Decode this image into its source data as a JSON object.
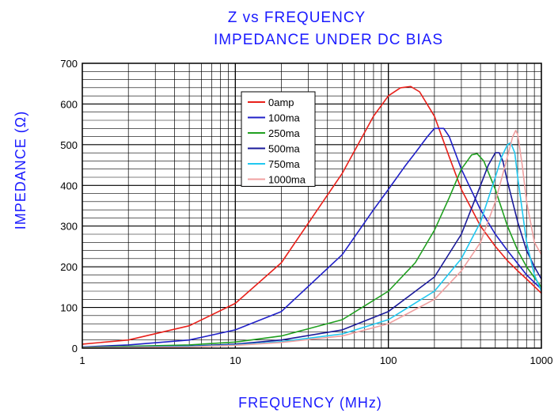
{
  "chart_data": {
    "type": "line",
    "title": "Z vs FREQUENCY",
    "subtitle": "IMPEDANCE UNDER DC BIAS",
    "xlabel": "FREQUENCY (MHz)",
    "ylabel": "IMPEDANCE (Ω)",
    "x_scale": "log",
    "xlim": [
      1,
      1000
    ],
    "ylim": [
      0,
      700
    ],
    "x_ticks": [
      "1",
      "10",
      "100",
      "1000"
    ],
    "y_ticks": [
      "0",
      "100",
      "200",
      "300",
      "400",
      "500",
      "600",
      "700"
    ],
    "grid": true,
    "legend_position": "top-center",
    "series": [
      {
        "name": "0amp",
        "color": "#e8201a",
        "x": [
          1,
          2,
          5,
          10,
          20,
          50,
          80,
          100,
          120,
          140,
          160,
          200,
          250,
          300,
          400,
          500,
          600,
          700,
          800,
          1000
        ],
        "y": [
          10,
          20,
          55,
          110,
          210,
          430,
          570,
          620,
          640,
          643,
          630,
          570,
          470,
          390,
          300,
          250,
          215,
          190,
          170,
          135
        ]
      },
      {
        "name": "100ma",
        "color": "#2020c8",
        "x": [
          1,
          2,
          5,
          10,
          20,
          50,
          80,
          100,
          130,
          150,
          180,
          200,
          230,
          250,
          300,
          400,
          500,
          600,
          800,
          1000
        ],
        "y": [
          3,
          8,
          20,
          45,
          90,
          230,
          340,
          390,
          450,
          480,
          520,
          540,
          540,
          520,
          440,
          340,
          280,
          240,
          180,
          145
        ]
      },
      {
        "name": "250ma",
        "color": "#20a020",
        "x": [
          1,
          5,
          10,
          20,
          50,
          100,
          150,
          200,
          250,
          300,
          350,
          380,
          420,
          500,
          600,
          700,
          800,
          1000
        ],
        "y": [
          2,
          8,
          15,
          30,
          70,
          140,
          210,
          290,
          370,
          440,
          475,
          478,
          460,
          390,
          300,
          240,
          200,
          150
        ]
      },
      {
        "name": "500ma",
        "color": "#1a1a9a",
        "x": [
          1,
          5,
          10,
          20,
          50,
          100,
          200,
          300,
          400,
          450,
          500,
          530,
          560,
          600,
          700,
          800,
          900,
          1000
        ],
        "y": [
          1,
          5,
          10,
          20,
          45,
          90,
          175,
          280,
          400,
          450,
          480,
          480,
          460,
          410,
          310,
          240,
          200,
          170
        ]
      },
      {
        "name": "750ma",
        "color": "#20c8f0",
        "x": [
          1,
          5,
          10,
          20,
          50,
          100,
          200,
          300,
          400,
          500,
          550,
          600,
          630,
          670,
          700,
          800,
          900,
          1000
        ],
        "y": [
          1,
          4,
          8,
          16,
          35,
          70,
          140,
          220,
          310,
          420,
          470,
          500,
          505,
          480,
          420,
          260,
          180,
          140
        ]
      },
      {
        "name": "1000ma",
        "color": "#f0a0a0",
        "x": [
          1,
          5,
          10,
          20,
          50,
          100,
          200,
          300,
          400,
          500,
          600,
          650,
          680,
          700,
          750,
          800,
          900,
          1000
        ],
        "y": [
          1,
          3,
          7,
          14,
          30,
          60,
          120,
          190,
          260,
          360,
          470,
          520,
          535,
          525,
          450,
          360,
          260,
          230
        ]
      }
    ]
  }
}
